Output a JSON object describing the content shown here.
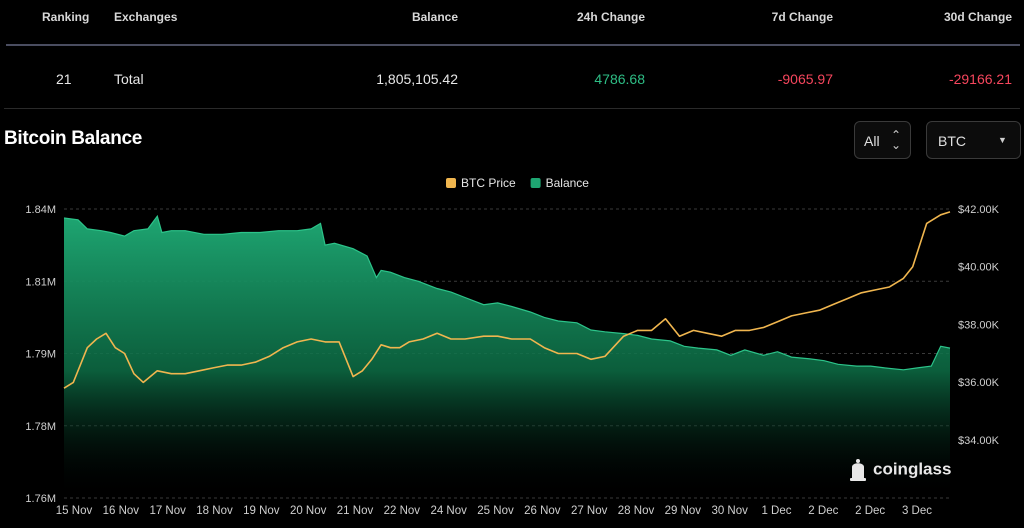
{
  "table": {
    "headers": {
      "ranking": "Ranking",
      "exchanges": "Exchanges",
      "balance": "Balance",
      "change_24h": "24h Change",
      "change_7d": "7d Change",
      "change_30d": "30d Change"
    },
    "row": {
      "ranking": "21",
      "exchange": "Total",
      "balance": "1,805,105.42",
      "change_24h": "4786.68",
      "change_7d": "-9065.97",
      "change_30d": "-29166.21"
    }
  },
  "section_title": "Bitcoin Balance",
  "controls": {
    "range_select": "All",
    "asset_select": "BTC"
  },
  "colors": {
    "btc_price": "#f0b64f",
    "balance": "#1ea672",
    "positive": "#2ebd85",
    "negative": "#f6465d"
  },
  "watermark": "coinglass",
  "chart_data": {
    "type": "area",
    "legend": [
      "BTC Price",
      "Balance"
    ],
    "legend_position": "top-center",
    "x_tick_labels": [
      "15 Nov",
      "16 Nov",
      "17 Nov",
      "18 Nov",
      "19 Nov",
      "20 Nov",
      "21 Nov",
      "22 Nov",
      "24 Nov",
      "25 Nov",
      "26 Nov",
      "27 Nov",
      "28 Nov",
      "29 Nov",
      "30 Nov",
      "1 Dec",
      "2 Dec",
      "2 Dec",
      "3 Dec"
    ],
    "y_left_ticks": [
      "1.84M",
      "1.81M",
      "1.79M",
      "1.78M",
      "1.76M"
    ],
    "y_right_ticks": [
      "$42.00K",
      "$40.00K",
      "$38.00K",
      "$36.00K",
      "$34.00K"
    ],
    "y_left_range": [
      1760000,
      1840000
    ],
    "y_right_range": [
      32000,
      42000
    ],
    "grid": "horizontal-dashed",
    "series": [
      {
        "name": "Balance",
        "axis": "left",
        "x": [
          0,
          0.3,
          0.5,
          0.8,
          1,
          1.3,
          1.5,
          1.8,
          2,
          2.1,
          2.3,
          2.6,
          3,
          3.4,
          3.8,
          4.2,
          4.6,
          5,
          5.3,
          5.5,
          5.6,
          5.8,
          6.2,
          6.5,
          6.7,
          6.8,
          7,
          7.3,
          7.6,
          8,
          8.3,
          8.6,
          9,
          9.3,
          9.6,
          10,
          10.3,
          10.6,
          11,
          11.3,
          11.6,
          12,
          12.3,
          12.6,
          13,
          13.3,
          13.6,
          14,
          14.3,
          14.6,
          15,
          15.3,
          15.6,
          16,
          16.3,
          16.6,
          17,
          17.3,
          17.6,
          18,
          18.3,
          18.6,
          18.8,
          19
        ],
        "values": [
          1837500,
          1837000,
          1834500,
          1834000,
          1833500,
          1832500,
          1834000,
          1834500,
          1838000,
          1833500,
          1834000,
          1834000,
          1833000,
          1833000,
          1833500,
          1833500,
          1834000,
          1834000,
          1834500,
          1836000,
          1830000,
          1830500,
          1829000,
          1827000,
          1821000,
          1823000,
          1822500,
          1821000,
          1820000,
          1818000,
          1817000,
          1815500,
          1813500,
          1814000,
          1813000,
          1811500,
          1810000,
          1809000,
          1808500,
          1806500,
          1806000,
          1805500,
          1805000,
          1804000,
          1803500,
          1802000,
          1801500,
          1801000,
          1799500,
          1801000,
          1799500,
          1800500,
          1799000,
          1798500,
          1798000,
          1797000,
          1796500,
          1796500,
          1796000,
          1795500,
          1796000,
          1796500,
          1802000,
          1801500
        ]
      },
      {
        "name": "BTC Price",
        "axis": "right",
        "x": [
          0,
          0.2,
          0.5,
          0.7,
          0.9,
          1.1,
          1.3,
          1.5,
          1.7,
          2,
          2.3,
          2.6,
          2.9,
          3.2,
          3.5,
          3.8,
          4.1,
          4.4,
          4.7,
          5,
          5.3,
          5.6,
          5.9,
          6.2,
          6.4,
          6.6,
          6.8,
          7,
          7.2,
          7.4,
          7.7,
          8,
          8.3,
          8.6,
          9,
          9.3,
          9.6,
          10,
          10.3,
          10.6,
          11,
          11.3,
          11.6,
          12,
          12.3,
          12.6,
          12.9,
          13.2,
          13.5,
          13.8,
          14.1,
          14.4,
          14.7,
          15,
          15.3,
          15.6,
          15.9,
          16.2,
          16.5,
          16.8,
          17.1,
          17.4,
          17.7,
          18,
          18.2,
          18.4,
          18.5,
          18.7,
          18.8,
          19
        ],
        "values": [
          35800,
          36000,
          37200,
          37500,
          37700,
          37200,
          37000,
          36300,
          36000,
          36400,
          36300,
          36300,
          36400,
          36500,
          36600,
          36600,
          36700,
          36900,
          37200,
          37400,
          37500,
          37400,
          37400,
          36200,
          36400,
          36800,
          37300,
          37200,
          37200,
          37400,
          37500,
          37700,
          37500,
          37500,
          37600,
          37600,
          37500,
          37500,
          37200,
          37000,
          37000,
          36800,
          36900,
          37600,
          37800,
          37800,
          38200,
          37600,
          37800,
          37700,
          37600,
          37800,
          37800,
          37900,
          38100,
          38300,
          38400,
          38500,
          38700,
          38900,
          39100,
          39200,
          39300,
          39600,
          40000,
          41000,
          41500,
          41700,
          41800,
          41900
        ]
      }
    ]
  }
}
